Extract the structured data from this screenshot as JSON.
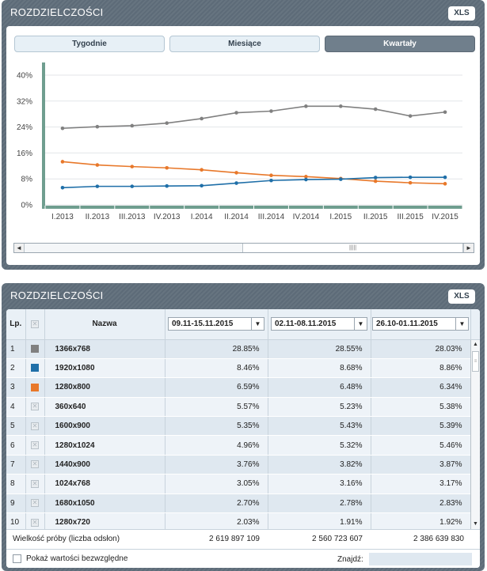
{
  "top_panel": {
    "title": "ROZDZIELCZOŚCI",
    "xls_label": "XLS",
    "tabs": [
      {
        "label": "Tygodnie",
        "active": false
      },
      {
        "label": "Miesiące",
        "active": false
      },
      {
        "label": "Kwartały",
        "active": true
      }
    ]
  },
  "chart_data": {
    "type": "line",
    "categories": [
      "I.2013",
      "II.2013",
      "III.2013",
      "IV.2013",
      "I.2014",
      "II.2014",
      "III.2014",
      "IV.2014",
      "I.2015",
      "II.2015",
      "III.2015",
      "IV.2015"
    ],
    "y_ticks": [
      "40%",
      "32%",
      "24%",
      "16%",
      "8%",
      "0%"
    ],
    "ylim": [
      0,
      40
    ],
    "series": [
      {
        "color": "#808080",
        "values": [
          23.6,
          24.1,
          24.4,
          25.2,
          26.6,
          28.4,
          28.9,
          30.4,
          30.4,
          29.5,
          27.4,
          28.6
        ]
      },
      {
        "color": "#e8782a",
        "values": [
          13.3,
          12.3,
          11.8,
          11.4,
          10.8,
          9.9,
          9.1,
          8.7,
          8.1,
          7.3,
          6.8,
          6.5
        ]
      },
      {
        "color": "#1f6fa8",
        "values": [
          5.3,
          5.7,
          5.7,
          5.8,
          5.9,
          6.7,
          7.5,
          7.8,
          7.9,
          8.4,
          8.5,
          8.5
        ]
      }
    ],
    "grid": true
  },
  "bottom_panel": {
    "title": "ROZDZIELCZOŚCI",
    "xls_label": "XLS",
    "headers": {
      "lp": "Lp.",
      "name": "Nazwa"
    },
    "periods": [
      "09.11-15.11.2015",
      "02.11-08.11.2015",
      "26.10-01.11.2015"
    ],
    "rows": [
      {
        "lp": "1",
        "swatch": "#808080",
        "name": "1366x768",
        "v": [
          "28.85%",
          "28.55%",
          "28.03%"
        ]
      },
      {
        "lp": "2",
        "swatch": "#1f6fa8",
        "name": "1920x1080",
        "v": [
          "8.46%",
          "8.68%",
          "8.86%"
        ]
      },
      {
        "lp": "3",
        "swatch": "#e8782a",
        "name": "1280x800",
        "v": [
          "6.59%",
          "6.48%",
          "6.34%"
        ]
      },
      {
        "lp": "4",
        "swatch": "",
        "name": "360x640",
        "v": [
          "5.57%",
          "5.23%",
          "5.38%"
        ]
      },
      {
        "lp": "5",
        "swatch": "",
        "name": "1600x900",
        "v": [
          "5.35%",
          "5.43%",
          "5.39%"
        ]
      },
      {
        "lp": "6",
        "swatch": "",
        "name": "1280x1024",
        "v": [
          "4.96%",
          "5.32%",
          "5.46%"
        ]
      },
      {
        "lp": "7",
        "swatch": "",
        "name": "1440x900",
        "v": [
          "3.76%",
          "3.82%",
          "3.87%"
        ]
      },
      {
        "lp": "8",
        "swatch": "",
        "name": "1024x768",
        "v": [
          "3.05%",
          "3.16%",
          "3.17%"
        ]
      },
      {
        "lp": "9",
        "swatch": "",
        "name": "1680x1050",
        "v": [
          "2.70%",
          "2.78%",
          "2.83%"
        ]
      },
      {
        "lp": "10",
        "swatch": "",
        "name": "1280x720",
        "v": [
          "2.03%",
          "1.91%",
          "1.92%"
        ]
      }
    ],
    "sample_label": "Wielkość próby (liczba odsłon)",
    "sample_values": [
      "2 619 897 109",
      "2 560 723 607",
      "2 386 639 830"
    ],
    "absolute_label": "Pokaż wartości bezwzględne",
    "find_label": "Znajdź:",
    "find_value": ""
  }
}
